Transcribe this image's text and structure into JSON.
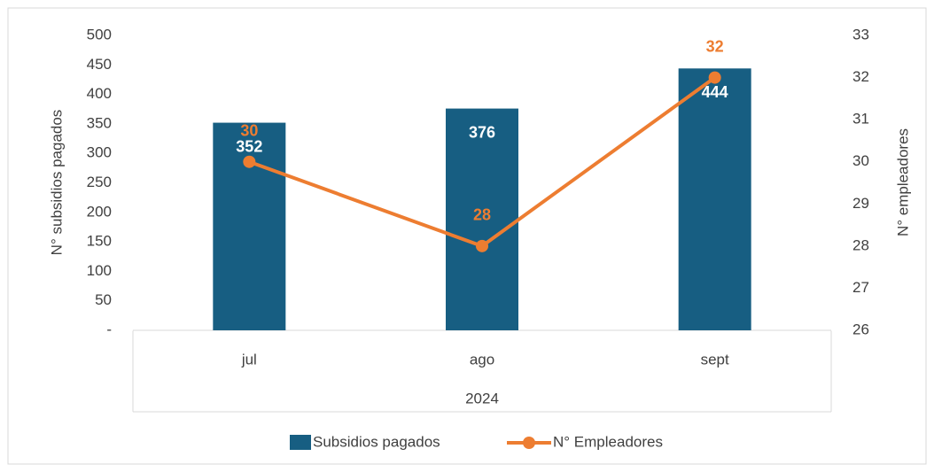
{
  "chart_data": {
    "type": "bar-line",
    "categories": [
      "jul",
      "ago",
      "sept"
    ],
    "group_label": "2024",
    "ylabel": "N° subsidios pagados",
    "y2label": "N° empleadores",
    "ylim": [
      0,
      500
    ],
    "yticks": [
      {
        "value": 0,
        "label": "-"
      },
      50,
      100,
      150,
      200,
      250,
      300,
      350,
      400,
      450,
      500
    ],
    "y2lim": [
      26,
      33
    ],
    "y2ticks": [
      26,
      27,
      28,
      29,
      30,
      31,
      32,
      33
    ],
    "legend": "bottom",
    "series": [
      {
        "name": "Subsidios pagados",
        "type": "bar",
        "color": "#175e82",
        "values": [
          352,
          376,
          444
        ]
      },
      {
        "name": "N° Empleadores",
        "type": "line",
        "axis": "y2",
        "color": "#ed7d31",
        "values": [
          30,
          28,
          32
        ]
      }
    ]
  }
}
